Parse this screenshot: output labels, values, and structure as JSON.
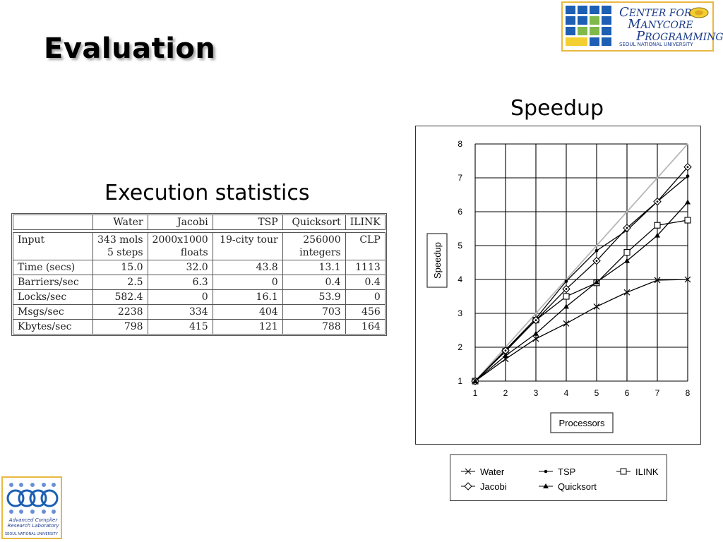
{
  "slide": {
    "title": "Evaluation",
    "exec_heading": "Execution statistics",
    "speedup_heading": "Speedup"
  },
  "logos": {
    "cmp": {
      "line1a": "C",
      "line1b": "ENTER FOR",
      "line2a": "M",
      "line2b": "ANYCORE",
      "line3a": "P",
      "line3b": "ROGRAMMING",
      "university": "SEOUL NATIONAL UNIVERSITY"
    },
    "acrl": {
      "name_line1": "Advanced Compiler",
      "name_line2": "Research Laboratory",
      "university": "SEOUL NATIONAL UNIVERSITY"
    }
  },
  "stats_table": {
    "headers": [
      "",
      "Water",
      "Jacobi",
      "TSP",
      "Quicksort",
      "ILINK"
    ],
    "input_row": {
      "label": "Input",
      "line1": [
        "343 mols",
        "2000x1000",
        "19-city tour",
        "256000",
        "CLP"
      ],
      "line2": [
        "5 steps",
        "floats",
        "",
        "integers",
        ""
      ]
    },
    "rows": [
      [
        "Time (secs)",
        "15.0",
        "32.0",
        "43.8",
        "13.1",
        "1113"
      ],
      [
        "Barriers/sec",
        "2.5",
        "6.3",
        "0",
        "0.4",
        "0.4"
      ],
      [
        "Locks/sec",
        "582.4",
        "0",
        "16.1",
        "53.9",
        "0"
      ],
      [
        "Msgs/sec",
        "2238",
        "334",
        "404",
        "703",
        "456"
      ],
      [
        "Kbytes/sec",
        "798",
        "415",
        "121",
        "788",
        "164"
      ]
    ]
  },
  "chart_data": {
    "type": "line",
    "xlabel": "Processors",
    "ylabel": "Speedup",
    "xlim": [
      1,
      8
    ],
    "ylim": [
      1,
      8
    ],
    "xticks": [
      1,
      2,
      3,
      4,
      5,
      6,
      7,
      8
    ],
    "yticks": [
      1,
      2,
      3,
      4,
      5,
      6,
      7,
      8
    ],
    "grid": true,
    "legend_position": "below",
    "x": [
      1,
      2,
      3,
      4,
      5,
      6,
      7,
      8
    ],
    "series": [
      {
        "name": "Water",
        "marker": "x",
        "values": [
          1,
          1.65,
          2.25,
          2.7,
          3.2,
          3.62,
          3.98,
          4.0
        ]
      },
      {
        "name": "TSP",
        "marker": "dot",
        "values": [
          1,
          1.92,
          2.85,
          3.95,
          4.85,
          5.45,
          6.3,
          7.05
        ]
      },
      {
        "name": "ILINK",
        "marker": "square",
        "values": [
          1,
          1.88,
          2.8,
          3.5,
          3.9,
          4.8,
          5.6,
          5.75
        ]
      },
      {
        "name": "Jacobi",
        "marker": "diamond",
        "values": [
          1,
          1.9,
          2.8,
          3.72,
          4.55,
          5.52,
          6.3,
          7.32
        ]
      },
      {
        "name": "Quicksort",
        "marker": "triangle",
        "values": [
          1,
          1.75,
          2.4,
          3.2,
          3.92,
          4.55,
          5.3,
          6.28
        ]
      }
    ],
    "reference_line": {
      "color": "#b8b8b8",
      "values": [
        1,
        2,
        3,
        4,
        5,
        6,
        7,
        8
      ]
    }
  },
  "colors": {
    "logo_border": "#e9b840",
    "logo_blue": "#1c5fb4",
    "logo_green": "#7fb94a",
    "logo_yellow": "#f4cf32"
  }
}
